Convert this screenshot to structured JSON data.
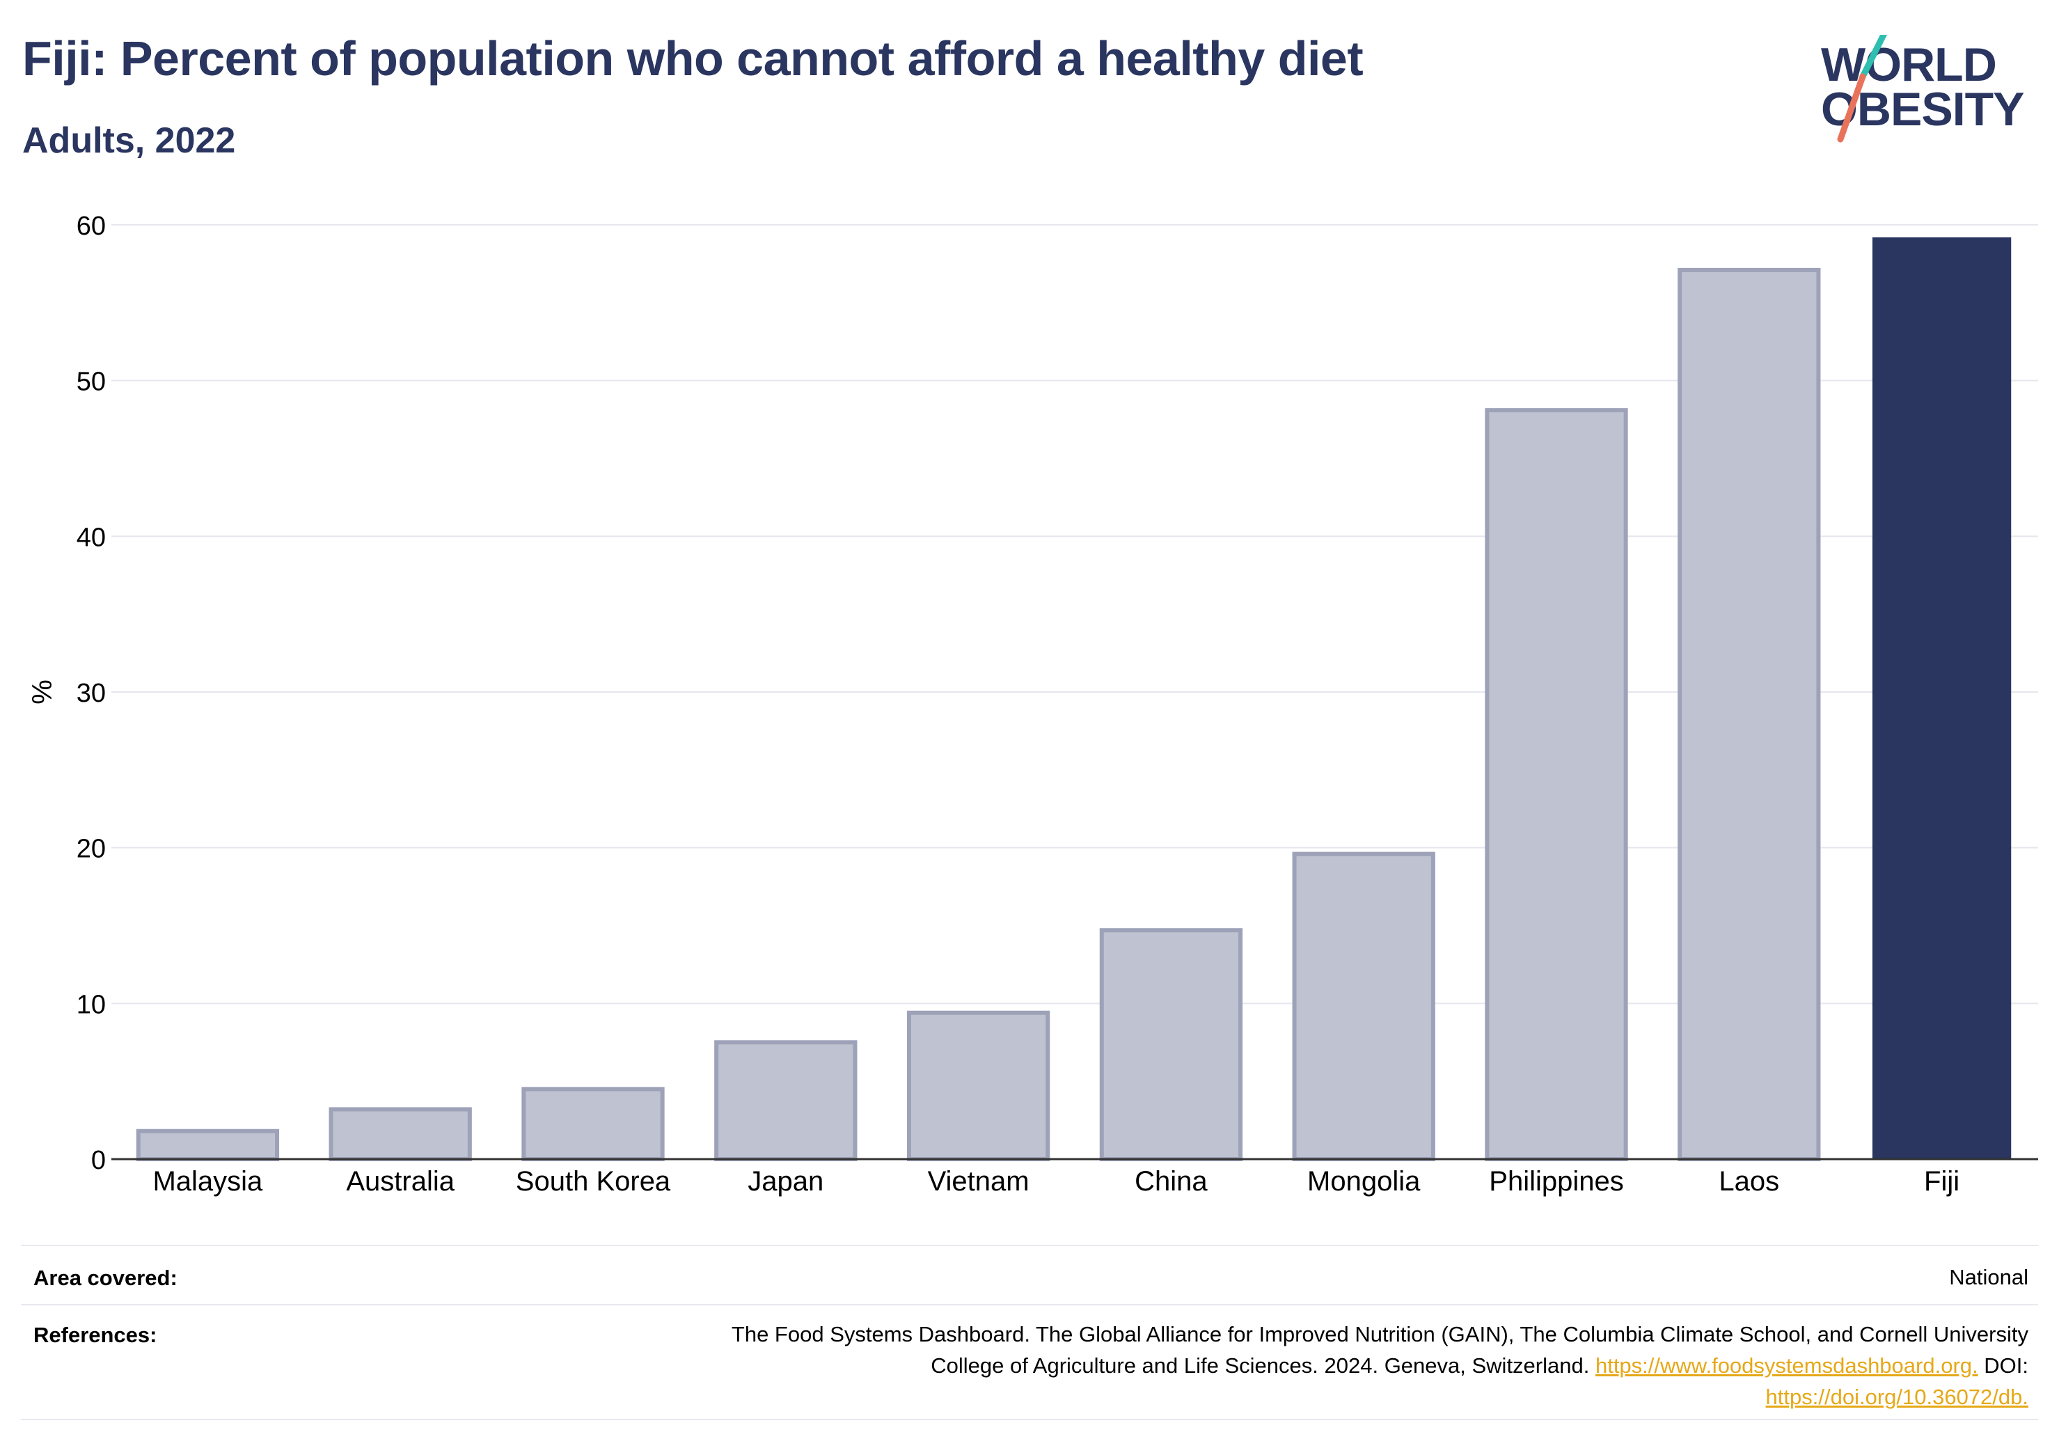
{
  "header": {
    "title": "Fiji: Percent of population who cannot afford a healthy diet",
    "subtitle": "Adults, 2022"
  },
  "logo": {
    "line1": "WORLD",
    "line2": "OBESITY",
    "icon": "world-obesity-logo"
  },
  "colors": {
    "brand": "#2a3560",
    "comparison_bar": "#bfc2d0",
    "comparison_bar_border": "#9da2b8",
    "highlight_bar": "#2a3560",
    "link": "#e6a817",
    "logo_teal": "#2fbfb0",
    "logo_coral": "#e8735a"
  },
  "chart_data": {
    "type": "bar",
    "categories": [
      "Malaysia",
      "Australia",
      "South Korea",
      "Japan",
      "Vietnam",
      "China",
      "Mongolia",
      "Philippines",
      "Laos",
      "Fiji"
    ],
    "values": [
      1.8,
      3.2,
      4.5,
      7.5,
      9.4,
      14.7,
      19.6,
      48.1,
      57.1,
      59.2
    ],
    "highlight": "Fiji",
    "ylabel": "%",
    "xlabel": "",
    "ylim": [
      0,
      60
    ],
    "yticks": [
      0,
      10,
      20,
      30,
      40,
      50,
      60
    ],
    "grid": true
  },
  "footer": {
    "area_label": "Area covered:",
    "area_value": "National",
    "references_label": "References:",
    "references_line1": "The Food Systems Dashboard. The Global Alliance for Improved Nutrition (GAIN), The Columbia Climate School, and Cornell University",
    "references_line2": "College of Agriculture and Life Sciences. 2024. Geneva, Switzerland.",
    "references_link1": "https://www.foodsystemsdashboard.org.",
    "references_doi": "DOI:",
    "references_link2": "https://doi.org/10.36072/db."
  }
}
